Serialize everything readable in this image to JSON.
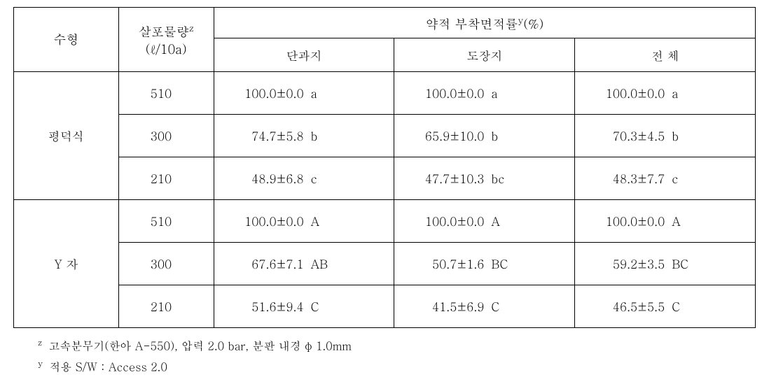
{
  "header": {
    "col_type": "수형",
    "col_volume_html": "살포물량<span class='sup'>z</span><br>(ℓ/10a)",
    "col_adhesion_html": "약적 부착면적률<span class='sup'>y</span>(%)",
    "sub_short": "단과지",
    "sub_top": "도장지",
    "sub_total": "전 체"
  },
  "groups": [
    {
      "label": "평덕식",
      "rows": [
        {
          "vol": "510",
          "c1v": "100.0±0.0",
          "c1l": "a",
          "c2v": "100.0±0.0",
          "c2l": "a",
          "c3v": "100.0±0.0",
          "c3l": "a"
        },
        {
          "vol": "300",
          "c1v": "74.7±5.8",
          "c1l": "b",
          "c2v": "65.9±10.0",
          "c2l": "b",
          "c3v": "70.3±4.5",
          "c3l": "b"
        },
        {
          "vol": "210",
          "c1v": "48.9±6.8",
          "c1l": "c",
          "c2v": "47.7±10.3",
          "c2l": "bc",
          "c3v": "48.3±7.7",
          "c3l": "c"
        }
      ]
    },
    {
      "label": "Y 자",
      "rows": [
        {
          "vol": "510",
          "c1v": "100.0±0.0",
          "c1l": "A",
          "c2v": "100.0±0.0",
          "c2l": "A",
          "c3v": "100.0±0.0",
          "c3l": "A"
        },
        {
          "vol": "300",
          "c1v": "67.6±7.1",
          "c1l": "AB",
          "c2v": "50.7±1.6",
          "c2l": "BC",
          "c3v": "59.2±3.5",
          "c3l": "BC"
        },
        {
          "vol": "210",
          "c1v": "51.6±9.4",
          "c1l": "C",
          "c2v": "41.5±6.9",
          "c2l": "C",
          "c3v": "46.5±5.5",
          "c3l": "C"
        }
      ]
    }
  ],
  "footnotes": {
    "z_html": "<span class='sup'>z</span> 고속분무기(한아 A-550), 압력 2.0 bar, 분판 내경 φ 1.0mm",
    "y_html": "<span class='sup'>y</span> 적용 S/W : Access 2.0"
  }
}
